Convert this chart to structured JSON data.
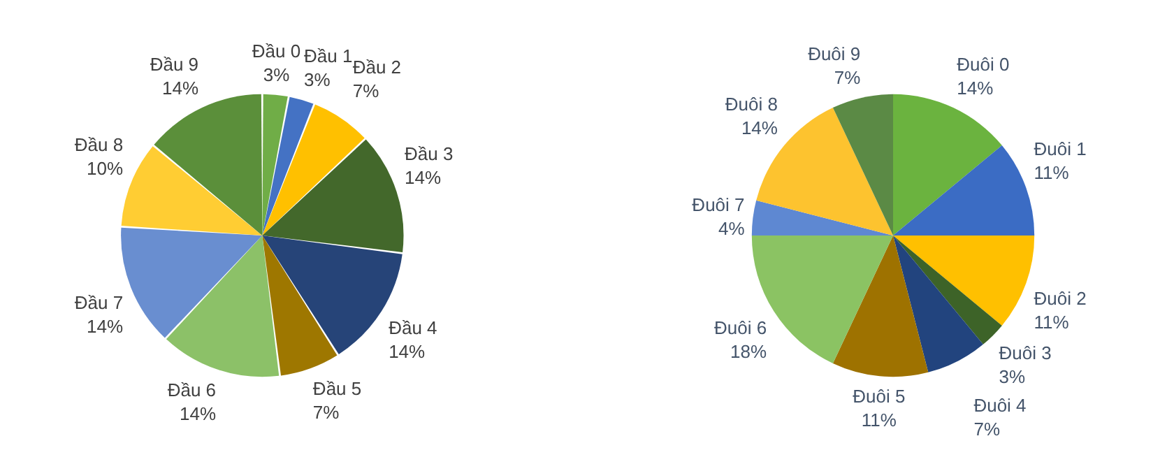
{
  "chart_data": [
    {
      "type": "pie",
      "categories": [
        "Đầu 0",
        "Đầu 1",
        "Đầu 2",
        "Đầu 3",
        "Đầu 4",
        "Đầu 5",
        "Đầu 6",
        "Đầu 7",
        "Đầu 8",
        "Đầu 9"
      ],
      "values": [
        3,
        3,
        7,
        14,
        14,
        7,
        14,
        14,
        10,
        14
      ],
      "value_labels": [
        "3%",
        "3%",
        "7%",
        "14%",
        "14%",
        "7%",
        "14%",
        "14%",
        "10%",
        "14%"
      ],
      "colors": [
        "#70ad47",
        "#4472c4",
        "#ffc000",
        "#43682b",
        "#264478",
        "#9e7700",
        "#8cc168",
        "#698ed0",
        "#ffcd33",
        "#5b8f3a"
      ],
      "legend": false
    },
    {
      "type": "pie",
      "categories": [
        "Đuôi 0",
        "Đuôi 1",
        "Đuôi 2",
        "Đuôi 3",
        "Đuôi 4",
        "Đuôi 5",
        "Đuôi 6",
        "Đuôi 7",
        "Đuôi 8",
        "Đuôi 9"
      ],
      "values": [
        14,
        11,
        11,
        3,
        7,
        11,
        18,
        4,
        14,
        7
      ],
      "value_labels": [
        "14%",
        "11%",
        "11%",
        "3%",
        "7%",
        "11%",
        "18%",
        "4%",
        "14%",
        "7%"
      ],
      "colors": [
        "#6bb33f",
        "#3b6cc4",
        "#ffc000",
        "#3d6328",
        "#22447e",
        "#9e7200",
        "#8bc363",
        "#5e88d2",
        "#fdc32f",
        "#5b8a45"
      ],
      "legend": false
    }
  ]
}
